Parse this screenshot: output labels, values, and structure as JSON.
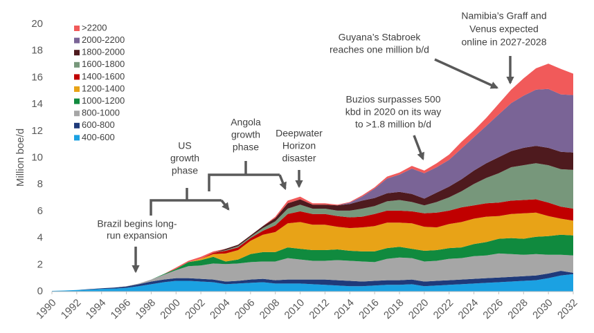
{
  "chart_data": {
    "type": "stacked_area",
    "y_label": "Million boe/d",
    "x": [
      1990,
      1991,
      1992,
      1993,
      1994,
      1995,
      1996,
      1997,
      1998,
      1999,
      2000,
      2001,
      2002,
      2003,
      2004,
      2005,
      2006,
      2007,
      2008,
      2009,
      2010,
      2011,
      2012,
      2013,
      2014,
      2015,
      2016,
      2017,
      2018,
      2019,
      2020,
      2021,
      2022,
      2023,
      2024,
      2025,
      2026,
      2027,
      2028,
      2029,
      2030,
      2031,
      2032
    ],
    "xlim": [
      1990,
      2032
    ],
    "xticks": [
      1990,
      1992,
      1994,
      1996,
      1998,
      2000,
      2002,
      2004,
      2006,
      2008,
      2010,
      2012,
      2014,
      2016,
      2018,
      2020,
      2022,
      2024,
      2026,
      2028,
      2030,
      2032
    ],
    "ylim": [
      0,
      20
    ],
    "yticks": [
      0,
      2,
      4,
      6,
      8,
      10,
      12,
      14,
      16,
      18,
      20
    ],
    "series": [
      {
        "name": "400-600",
        "color": "#1ba1e2",
        "values": [
          0.05,
          0.08,
          0.12,
          0.15,
          0.2,
          0.22,
          0.28,
          0.4,
          0.55,
          0.7,
          0.8,
          0.8,
          0.75,
          0.7,
          0.55,
          0.6,
          0.65,
          0.7,
          0.6,
          0.6,
          0.6,
          0.55,
          0.5,
          0.45,
          0.4,
          0.4,
          0.45,
          0.5,
          0.5,
          0.55,
          0.4,
          0.45,
          0.5,
          0.55,
          0.6,
          0.65,
          0.7,
          0.75,
          0.8,
          0.85,
          1.0,
          1.2,
          1.3
        ]
      },
      {
        "name": "600-800",
        "color": "#1f3a7a",
        "values": [
          0,
          0,
          0,
          0.03,
          0.05,
          0.08,
          0.1,
          0.15,
          0.2,
          0.2,
          0.2,
          0.2,
          0.2,
          0.2,
          0.2,
          0.2,
          0.25,
          0.25,
          0.25,
          0.3,
          0.3,
          0.35,
          0.4,
          0.4,
          0.4,
          0.35,
          0.35,
          0.35,
          0.35,
          0.35,
          0.35,
          0.35,
          0.35,
          0.35,
          0.35,
          0.35,
          0.35,
          0.35,
          0.35,
          0.35,
          0.35,
          0.35,
          0.1
        ]
      },
      {
        "name": "800-1000",
        "color": "#a6a6a6",
        "values": [
          0,
          0,
          0,
          0,
          0,
          0,
          0.02,
          0.05,
          0.15,
          0.35,
          0.6,
          0.9,
          1.0,
          1.2,
          1.3,
          1.3,
          1.3,
          1.3,
          1.4,
          1.6,
          1.5,
          1.4,
          1.4,
          1.5,
          1.5,
          1.5,
          1.4,
          1.6,
          1.7,
          1.6,
          1.5,
          1.5,
          1.6,
          1.6,
          1.7,
          1.7,
          1.8,
          1.7,
          1.6,
          1.6,
          1.4,
          1.2,
          1.3
        ]
      },
      {
        "name": "1000-1200",
        "color": "#108a3e",
        "values": [
          0,
          0,
          0,
          0,
          0,
          0,
          0,
          0,
          0,
          0.05,
          0.1,
          0.3,
          0.4,
          0.5,
          0.2,
          0.3,
          0.6,
          0.7,
          0.7,
          0.8,
          0.8,
          0.8,
          0.8,
          0.8,
          0.75,
          0.75,
          0.8,
          0.8,
          0.8,
          0.7,
          0.8,
          0.8,
          0.8,
          0.8,
          0.9,
          1.0,
          1.1,
          1.2,
          1.2,
          1.3,
          1.4,
          1.5,
          1.5
        ]
      },
      {
        "name": "1200-1400",
        "color": "#e8a317",
        "values": [
          0,
          0,
          0,
          0,
          0,
          0,
          0,
          0,
          0,
          0,
          0,
          0,
          0.1,
          0.2,
          0.6,
          0.7,
          1.0,
          1.3,
          1.5,
          1.8,
          2.0,
          1.9,
          1.9,
          1.7,
          1.7,
          1.8,
          1.9,
          1.9,
          1.8,
          1.9,
          1.8,
          1.7,
          1.8,
          1.9,
          1.9,
          1.9,
          1.7,
          1.8,
          1.9,
          1.8,
          1.5,
          1.2,
          1.1
        ]
      },
      {
        "name": "1400-1600",
        "color": "#c00000",
        "values": [
          0,
          0,
          0,
          0,
          0,
          0,
          0,
          0,
          0,
          0,
          0,
          0,
          0,
          0.1,
          0.2,
          0.2,
          0.2,
          0.3,
          0.5,
          0.7,
          0.8,
          0.8,
          0.8,
          0.8,
          0.8,
          0.8,
          0.9,
          0.9,
          0.9,
          0.9,
          1.0,
          1.1,
          1.0,
          1.1,
          1.0,
          1.0,
          1.0,
          1.0,
          1.0,
          1.0,
          1.0,
          0.9,
          0.9
        ]
      },
      {
        "name": "1600-1800",
        "color": "#77977b",
        "values": [
          0,
          0,
          0,
          0,
          0,
          0,
          0,
          0,
          0,
          0,
          0,
          0,
          0,
          0,
          0.05,
          0.1,
          0.1,
          0.2,
          0.3,
          0.4,
          0.5,
          0.4,
          0.4,
          0.4,
          0.5,
          0.6,
          0.6,
          0.7,
          0.8,
          0.7,
          0.6,
          0.8,
          1.0,
          1.2,
          1.6,
          1.9,
          2.2,
          2.5,
          2.6,
          2.7,
          2.8,
          2.8,
          2.9
        ]
      },
      {
        "name": "1800-2000",
        "color": "#4e1a1e",
        "values": [
          0,
          0,
          0,
          0,
          0,
          0,
          0,
          0,
          0,
          0,
          0,
          0,
          0,
          0,
          0.1,
          0.1,
          0.1,
          0.15,
          0.25,
          0.4,
          0.4,
          0.3,
          0.3,
          0.4,
          0.5,
          0.6,
          0.6,
          0.6,
          0.6,
          0.6,
          0.5,
          0.7,
          0.8,
          0.9,
          1.0,
          1.1,
          1.2,
          1.2,
          1.3,
          1.3,
          1.3,
          1.3,
          1.3
        ]
      },
      {
        "name": "2000-2200",
        "color": "#7a6496",
        "values": [
          0,
          0,
          0,
          0,
          0,
          0,
          0,
          0,
          0,
          0,
          0,
          0,
          0,
          0,
          0,
          0,
          0,
          0,
          0,
          0,
          0,
          0,
          0,
          0,
          0.1,
          0.3,
          0.7,
          1.1,
          1.3,
          1.9,
          1.9,
          1.9,
          2.0,
          2.3,
          2.5,
          2.8,
          3.2,
          3.6,
          3.9,
          4.2,
          4.4,
          4.3,
          4.3
        ]
      },
      {
        "name": ">2200",
        "color": "#f15a5a",
        "values": [
          0,
          0,
          0,
          0,
          0,
          0,
          0,
          0,
          0,
          0,
          0.1,
          0.1,
          0.15,
          0.1,
          0,
          0,
          0,
          0,
          0.1,
          0.2,
          0.2,
          0.1,
          0.1,
          0.05,
          0.05,
          0.1,
          0.1,
          0.15,
          0.15,
          0.2,
          0.2,
          0.3,
          0.4,
          0.5,
          0.5,
          0.6,
          0.8,
          1.0,
          1.3,
          1.6,
          1.9,
          1.9,
          1.6
        ]
      }
    ],
    "annotations": [
      {
        "lines": [
          "Brazil begins long-",
          "run expansion"
        ]
      },
      {
        "lines": [
          "US",
          "growth",
          "phase"
        ]
      },
      {
        "lines": [
          "Angola",
          "growth",
          "phase"
        ]
      },
      {
        "lines": [
          "Deepwater",
          "Horizon",
          "disaster"
        ]
      },
      {
        "lines": [
          "Buzios surpasses 500",
          "kbd in 2020 on its way",
          "to >1.8 million b/d"
        ]
      },
      {
        "lines": [
          "Guyana’s Stabroek",
          "reaches one million b/d"
        ]
      },
      {
        "lines": [
          "Namibia’s Graff and",
          "Venus expected",
          "online in 2027-2028"
        ]
      }
    ]
  }
}
